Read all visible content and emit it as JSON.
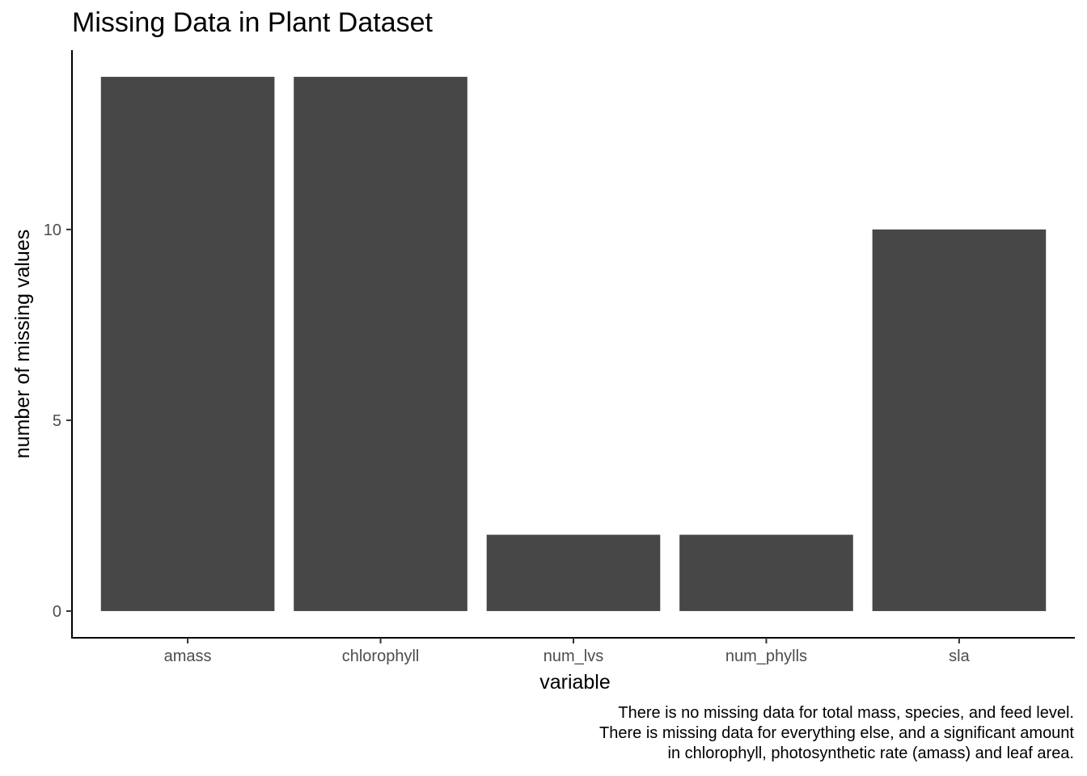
{
  "chart_data": {
    "type": "bar",
    "title": "Missing Data in Plant Dataset",
    "xlabel": "variable",
    "ylabel": "number of missing values",
    "categories": [
      "amass",
      "chlorophyll",
      "num_lvs",
      "num_phylls",
      "sla"
    ],
    "values": [
      14,
      14,
      2,
      2,
      10
    ],
    "y_ticks": [
      0,
      5,
      10
    ],
    "ylim": [
      -0.7,
      14.7
    ],
    "bar_color": "#474747",
    "grid": false,
    "caption": [
      "There is no missing data for total mass, species, and feed level.",
      "There is missing data for everything else, and a significant amount",
      "in chlorophyll, photosynthetic rate (amass) and leaf area."
    ]
  }
}
